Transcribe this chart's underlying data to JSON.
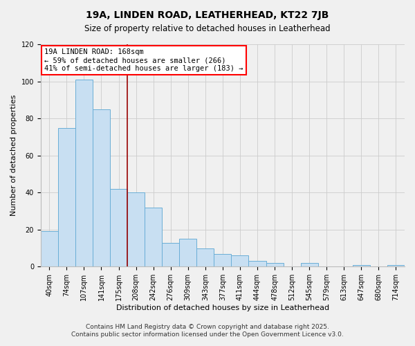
{
  "title": "19A, LINDEN ROAD, LEATHERHEAD, KT22 7JB",
  "subtitle": "Size of property relative to detached houses in Leatherhead",
  "xlabel": "Distribution of detached houses by size in Leatherhead",
  "ylabel": "Number of detached properties",
  "bar_labels": [
    "40sqm",
    "74sqm",
    "107sqm",
    "141sqm",
    "175sqm",
    "208sqm",
    "242sqm",
    "276sqm",
    "309sqm",
    "343sqm",
    "377sqm",
    "411sqm",
    "444sqm",
    "478sqm",
    "512sqm",
    "545sqm",
    "579sqm",
    "613sqm",
    "647sqm",
    "680sqm",
    "714sqm"
  ],
  "bar_values": [
    19,
    75,
    101,
    85,
    42,
    40,
    32,
    13,
    15,
    10,
    7,
    6,
    3,
    2,
    0,
    2,
    0,
    0,
    1,
    0,
    1
  ],
  "bar_color": "#c8dff2",
  "bar_edgecolor": "#6aaed6",
  "annotation_title": "19A LINDEN ROAD: 168sqm",
  "annotation_line1": "← 59% of detached houses are smaller (266)",
  "annotation_line2": "41% of semi-detached houses are larger (183) →",
  "vline_x": 4.5,
  "vline_color": "#990000",
  "ylim": [
    0,
    120
  ],
  "yticks": [
    0,
    20,
    40,
    60,
    80,
    100,
    120
  ],
  "footnote1": "Contains HM Land Registry data © Crown copyright and database right 2025.",
  "footnote2": "Contains public sector information licensed under the Open Government Licence v3.0.",
  "bg_color": "#f0f0f0",
  "plot_bg_color": "#f0f0f0",
  "grid_color": "#cccccc",
  "title_fontsize": 10,
  "subtitle_fontsize": 8.5,
  "axis_label_fontsize": 8,
  "tick_fontsize": 7,
  "annotation_fontsize": 7.5,
  "footnote_fontsize": 6.5
}
